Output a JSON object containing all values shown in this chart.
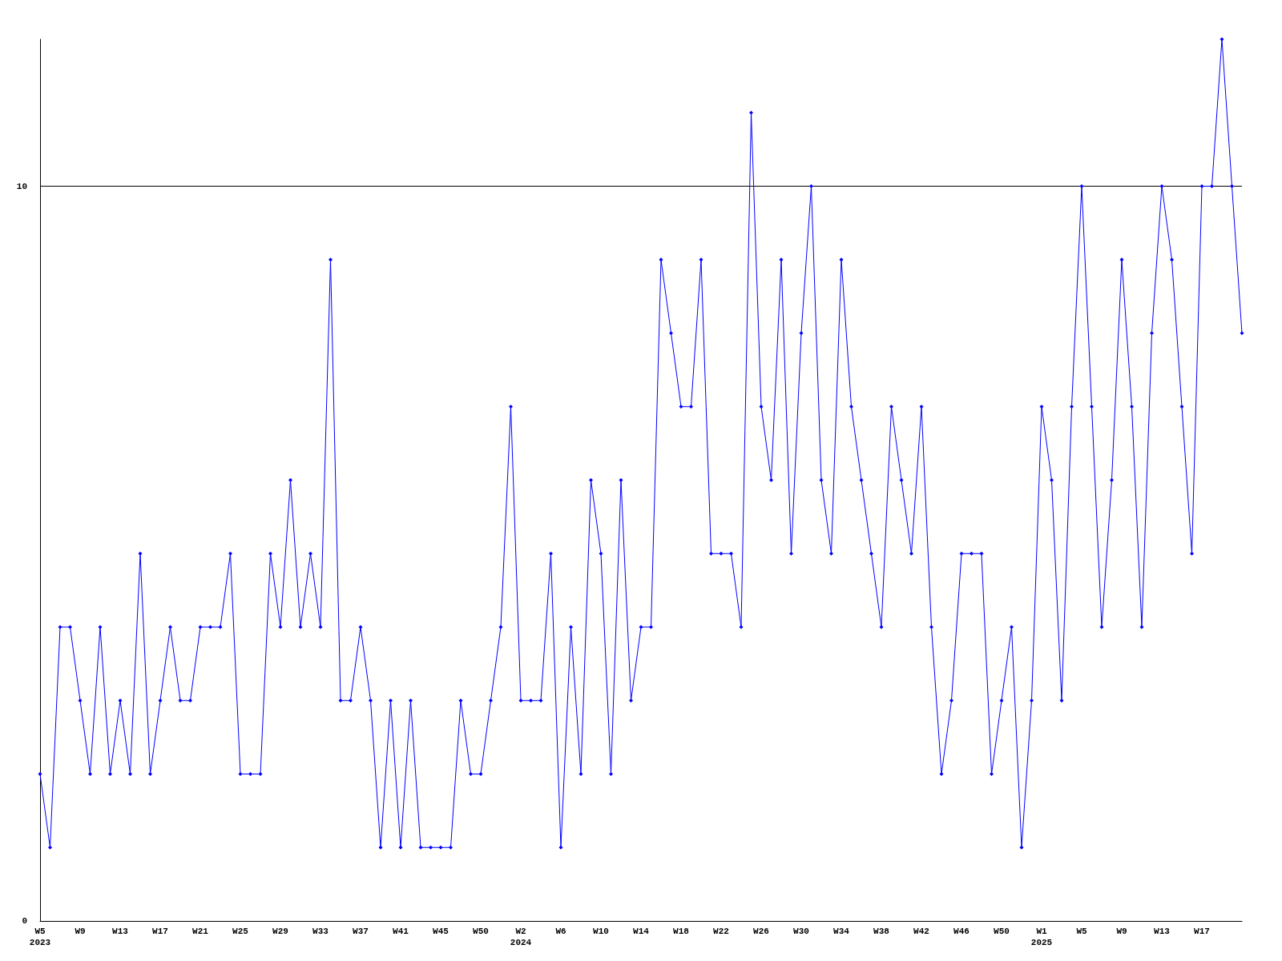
{
  "chart_data": {
    "type": "line",
    "categories": [
      "W5\n2023",
      null,
      null,
      null,
      "W9",
      null,
      null,
      null,
      "W13",
      null,
      null,
      null,
      "W17",
      null,
      null,
      null,
      "W21",
      null,
      null,
      null,
      "W25",
      null,
      null,
      null,
      "W29",
      null,
      null,
      null,
      "W33",
      null,
      null,
      null,
      "W37",
      null,
      null,
      null,
      "W41",
      null,
      null,
      null,
      "W45",
      null,
      null,
      null,
      "W50",
      null,
      null,
      null,
      "W2\n2024",
      null,
      null,
      null,
      "W6",
      null,
      null,
      null,
      "W10",
      null,
      null,
      null,
      "W14",
      null,
      null,
      null,
      "W18",
      null,
      null,
      null,
      "W22",
      null,
      null,
      null,
      "W26",
      null,
      null,
      null,
      "W30",
      null,
      null,
      null,
      "W34",
      null,
      null,
      null,
      "W38",
      null,
      null,
      null,
      "W42",
      null,
      null,
      null,
      "W46",
      null,
      null,
      null,
      "W50",
      null,
      null,
      null,
      "W1\n2025",
      null,
      null,
      null,
      "W5",
      null,
      null,
      null,
      "W9",
      null,
      null,
      null,
      "W13",
      null,
      null,
      null,
      "W17",
      null,
      null,
      null,
      null
    ],
    "series": [
      {
        "color": "#0000ff",
        "values": [
          2,
          1,
          4,
          4,
          3,
          2,
          4,
          2,
          3,
          2,
          5,
          2,
          3,
          4,
          3,
          3,
          4,
          4,
          4,
          5,
          2,
          2,
          2,
          5,
          4,
          6,
          4,
          5,
          4,
          9,
          3,
          3,
          4,
          3,
          1,
          3,
          1,
          3,
          1,
          1,
          1,
          1,
          3,
          2,
          2,
          3,
          4,
          7,
          3,
          3,
          3,
          5,
          1,
          4,
          2,
          6,
          5,
          2,
          6,
          3,
          4,
          4,
          9,
          8,
          7,
          7,
          9,
          5,
          5,
          5,
          4,
          11,
          7,
          6,
          9,
          5,
          8,
          10,
          6,
          5,
          9,
          7,
          6,
          5,
          4,
          7,
          6,
          5,
          7,
          4,
          2,
          3,
          5,
          5,
          5,
          2,
          3,
          4,
          1,
          3,
          7,
          6,
          3,
          7,
          10,
          7,
          4,
          6,
          9,
          7,
          4,
          8,
          10,
          9,
          7,
          5,
          10,
          10,
          12,
          10,
          8
        ]
      }
    ],
    "ylim": [
      0,
      12
    ],
    "yticks": [
      0,
      10
    ],
    "grid": "y",
    "marker": "diamond",
    "line_style": "solid"
  }
}
